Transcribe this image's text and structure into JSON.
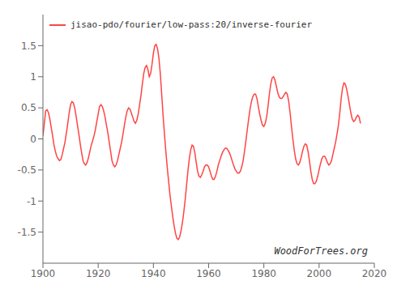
{
  "chart_data": {
    "type": "line",
    "x": [
      1900.0,
      1900.5,
      1901.0,
      1901.5,
      1902.0,
      1902.5,
      1903.0,
      1903.5,
      1904.0,
      1904.5,
      1905.0,
      1905.5,
      1906.0,
      1906.5,
      1907.0,
      1907.5,
      1908.0,
      1908.5,
      1909.0,
      1909.5,
      1910.0,
      1910.5,
      1911.0,
      1911.5,
      1912.0,
      1912.5,
      1913.0,
      1913.5,
      1914.0,
      1914.5,
      1915.0,
      1915.5,
      1916.0,
      1916.5,
      1917.0,
      1917.5,
      1918.0,
      1918.5,
      1919.0,
      1919.5,
      1920.0,
      1920.5,
      1921.0,
      1921.5,
      1922.0,
      1922.5,
      1923.0,
      1923.5,
      1924.0,
      1924.5,
      1925.0,
      1925.5,
      1926.0,
      1926.5,
      1927.0,
      1927.5,
      1928.0,
      1928.5,
      1929.0,
      1929.5,
      1930.0,
      1930.5,
      1931.0,
      1931.5,
      1932.0,
      1932.5,
      1933.0,
      1933.5,
      1934.0,
      1934.5,
      1935.0,
      1935.5,
      1936.0,
      1936.5,
      1937.0,
      1937.5,
      1938.0,
      1938.5,
      1939.0,
      1939.5,
      1940.0,
      1940.5,
      1941.0,
      1941.5,
      1942.0,
      1942.5,
      1943.0,
      1943.5,
      1944.0,
      1944.5,
      1945.0,
      1945.5,
      1946.0,
      1946.5,
      1947.0,
      1947.5,
      1948.0,
      1948.5,
      1949.0,
      1949.5,
      1950.0,
      1950.5,
      1951.0,
      1951.5,
      1952.0,
      1952.5,
      1953.0,
      1953.5,
      1954.0,
      1954.5,
      1955.0,
      1955.5,
      1956.0,
      1956.5,
      1957.0,
      1957.5,
      1958.0,
      1958.5,
      1959.0,
      1959.5,
      1960.0,
      1960.5,
      1961.0,
      1961.5,
      1962.0,
      1962.5,
      1963.0,
      1963.5,
      1964.0,
      1964.5,
      1965.0,
      1965.5,
      1966.0,
      1966.5,
      1967.0,
      1967.5,
      1968.0,
      1968.5,
      1969.0,
      1969.5,
      1970.0,
      1970.5,
      1971.0,
      1971.5,
      1972.0,
      1972.5,
      1973.0,
      1973.5,
      1974.0,
      1974.5,
      1975.0,
      1975.5,
      1976.0,
      1976.5,
      1977.0,
      1977.5,
      1978.0,
      1978.5,
      1979.0,
      1979.5,
      1980.0,
      1980.5,
      1981.0,
      1981.5,
      1982.0,
      1982.5,
      1983.0,
      1983.5,
      1984.0,
      1984.5,
      1985.0,
      1985.5,
      1986.0,
      1986.5,
      1987.0,
      1987.5,
      1988.0,
      1988.5,
      1989.0,
      1989.5,
      1990.0,
      1990.5,
      1991.0,
      1991.5,
      1992.0,
      1992.5,
      1993.0,
      1993.5,
      1994.0,
      1994.5,
      1995.0,
      1995.5,
      1996.0,
      1996.5,
      1997.0,
      1997.5,
      1998.0,
      1998.5,
      1999.0,
      1999.5,
      2000.0,
      2000.5,
      2001.0,
      2001.5,
      2002.0,
      2002.5,
      2003.0,
      2003.5,
      2004.0,
      2004.5,
      2005.0,
      2005.5,
      2006.0,
      2006.5,
      2007.0,
      2007.5,
      2008.0,
      2008.5,
      2009.0,
      2009.5,
      2010.0,
      2010.5,
      2011.0,
      2011.5,
      2012.0,
      2012.5,
      2013.0,
      2013.5,
      2014.0,
      2014.5,
      2015.0
    ],
    "series": [
      {
        "name": "jisao-pdo/fourier/low-pass:20/inverse-fourier",
        "color": "#ff4444",
        "values": [
          0.05,
          0.25,
          0.45,
          0.47,
          0.42,
          0.32,
          0.18,
          0.05,
          -0.1,
          -0.2,
          -0.28,
          -0.32,
          -0.35,
          -0.33,
          -0.25,
          -0.15,
          -0.05,
          0.1,
          0.25,
          0.42,
          0.55,
          0.6,
          0.58,
          0.5,
          0.37,
          0.22,
          0.08,
          -0.08,
          -0.22,
          -0.35,
          -0.4,
          -0.42,
          -0.38,
          -0.3,
          -0.2,
          -0.1,
          -0.03,
          0.05,
          0.15,
          0.28,
          0.4,
          0.52,
          0.55,
          0.52,
          0.45,
          0.35,
          0.22,
          0.1,
          -0.05,
          -0.2,
          -0.35,
          -0.42,
          -0.45,
          -0.42,
          -0.35,
          -0.25,
          -0.15,
          -0.05,
          0.08,
          0.22,
          0.35,
          0.45,
          0.5,
          0.48,
          0.42,
          0.35,
          0.28,
          0.25,
          0.3,
          0.4,
          0.55,
          0.7,
          0.88,
          1.05,
          1.15,
          1.18,
          1.12,
          1.0,
          1.05,
          1.2,
          1.38,
          1.5,
          1.52,
          1.45,
          1.3,
          1.05,
          0.72,
          0.38,
          0.08,
          -0.2,
          -0.45,
          -0.68,
          -0.9,
          -1.08,
          -1.25,
          -1.4,
          -1.52,
          -1.6,
          -1.62,
          -1.58,
          -1.48,
          -1.35,
          -1.18,
          -0.98,
          -0.75,
          -0.52,
          -0.32,
          -0.18,
          -0.1,
          -0.12,
          -0.22,
          -0.38,
          -0.52,
          -0.6,
          -0.62,
          -0.58,
          -0.52,
          -0.45,
          -0.42,
          -0.42,
          -0.45,
          -0.52,
          -0.6,
          -0.65,
          -0.65,
          -0.6,
          -0.52,
          -0.42,
          -0.35,
          -0.28,
          -0.22,
          -0.18,
          -0.15,
          -0.15,
          -0.18,
          -0.22,
          -0.28,
          -0.35,
          -0.42,
          -0.48,
          -0.52,
          -0.55,
          -0.55,
          -0.52,
          -0.45,
          -0.35,
          -0.2,
          -0.03,
          0.15,
          0.32,
          0.48,
          0.6,
          0.68,
          0.72,
          0.72,
          0.65,
          0.52,
          0.4,
          0.3,
          0.22,
          0.2,
          0.25,
          0.35,
          0.52,
          0.72,
          0.88,
          0.98,
          1.0,
          0.95,
          0.85,
          0.75,
          0.68,
          0.65,
          0.65,
          0.68,
          0.72,
          0.75,
          0.72,
          0.6,
          0.42,
          0.2,
          0.0,
          -0.18,
          -0.32,
          -0.4,
          -0.42,
          -0.38,
          -0.3,
          -0.2,
          -0.12,
          -0.08,
          -0.1,
          -0.2,
          -0.35,
          -0.52,
          -0.65,
          -0.72,
          -0.72,
          -0.68,
          -0.6,
          -0.5,
          -0.4,
          -0.32,
          -0.28,
          -0.28,
          -0.32,
          -0.38,
          -0.42,
          -0.4,
          -0.35,
          -0.25,
          -0.15,
          -0.05,
          0.08,
          0.22,
          0.42,
          0.65,
          0.82,
          0.9,
          0.88,
          0.8,
          0.68,
          0.55,
          0.42,
          0.32,
          0.28,
          0.3,
          0.35,
          0.38,
          0.35,
          0.25
        ]
      }
    ],
    "xlim": [
      1900,
      2020
    ],
    "ylim": [
      -2,
      2
    ],
    "xticks": [
      1900,
      1920,
      1940,
      1960,
      1980,
      2000,
      2020
    ],
    "yticks": [
      -1.5,
      -1,
      -0.5,
      0,
      0.5,
      1,
      1.5
    ],
    "grid": false,
    "legend": "upper left",
    "annotations": [
      "WoodForTrees.org"
    ]
  }
}
